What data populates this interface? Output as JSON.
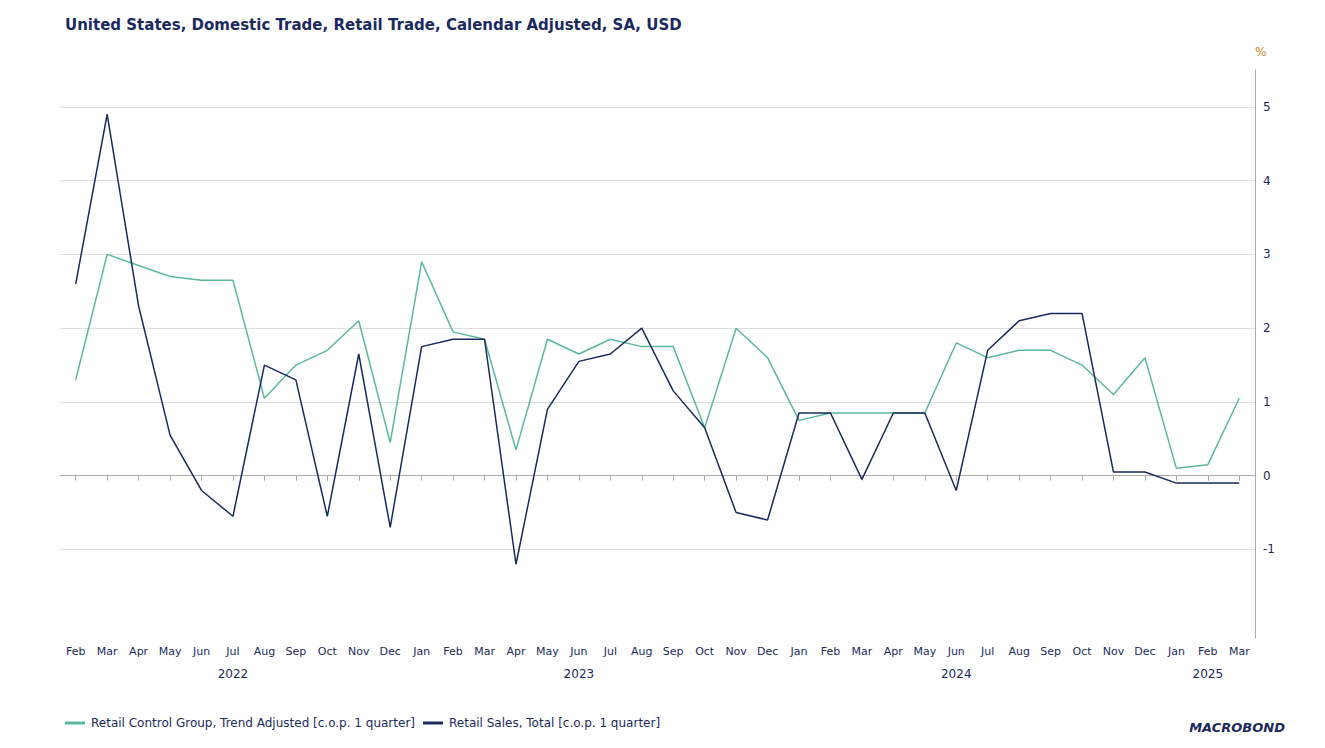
{
  "chart_data": {
    "type": "line",
    "title": "United States, Domestic Trade, Retail Trade, Calendar Adjusted, SA, USD",
    "y_label": "%",
    "categories": [
      "Feb",
      "Mar",
      "Apr",
      "May",
      "Jun",
      "Jul",
      "Aug",
      "Sep",
      "Oct",
      "Nov",
      "Dec",
      "Jan",
      "Feb",
      "Mar",
      "Apr",
      "May",
      "Jun",
      "Jul",
      "Aug",
      "Sep",
      "Oct",
      "Nov",
      "Dec",
      "Jan",
      "Feb",
      "Mar",
      "Apr",
      "May",
      "Jun",
      "Jul",
      "Aug",
      "Sep",
      "Oct",
      "Nov",
      "Dec",
      "Jan",
      "Feb",
      "Mar"
    ],
    "series": [
      {
        "name": "Retail Control Group, Trend Adjusted [c.o.p. 1 quarter]",
        "color": "#5bb8a0",
        "values": [
          1.3,
          3.0,
          2.85,
          2.7,
          2.65,
          2.65,
          1.05,
          1.5,
          1.7,
          2.1,
          0.45,
          2.9,
          1.95,
          1.85,
          0.35,
          1.85,
          1.65,
          1.85,
          1.75,
          1.75,
          0.65,
          2.0,
          1.6,
          0.75,
          0.85,
          0.85,
          0.85,
          0.85,
          1.8,
          1.6,
          1.7,
          1.7,
          1.5,
          1.1,
          1.6,
          0.1,
          0.15,
          1.05
        ]
      },
      {
        "name": "Retail Sales, Total [c.o.p. 1 quarter]",
        "color": "#1b2a5e",
        "values": [
          2.6,
          4.9,
          2.3,
          0.55,
          -0.2,
          -0.55,
          1.5,
          1.3,
          -0.55,
          1.65,
          -0.7,
          1.75,
          1.85,
          1.85,
          -1.2,
          0.9,
          1.55,
          1.65,
          2.0,
          1.15,
          0.65,
          -0.5,
          -0.6,
          0.85,
          0.85,
          -0.05,
          0.85,
          0.85,
          -0.2,
          1.7,
          2.1,
          2.2,
          2.2,
          0.05,
          0.05,
          -0.1,
          -0.1,
          -0.1
        ]
      }
    ],
    "ylim": [
      -2.2,
      5.5
    ],
    "yticks": [
      -1,
      0,
      1,
      2,
      3,
      4,
      5
    ],
    "grid": true,
    "legend": "lower left",
    "annotations": [
      {
        "text": "2022",
        "x": 5
      },
      {
        "text": "2023",
        "x": 16
      },
      {
        "text": "2024",
        "x": 28
      },
      {
        "text": "2025",
        "x": 36
      },
      {
        "text": "MACROBOND"
      }
    ]
  }
}
